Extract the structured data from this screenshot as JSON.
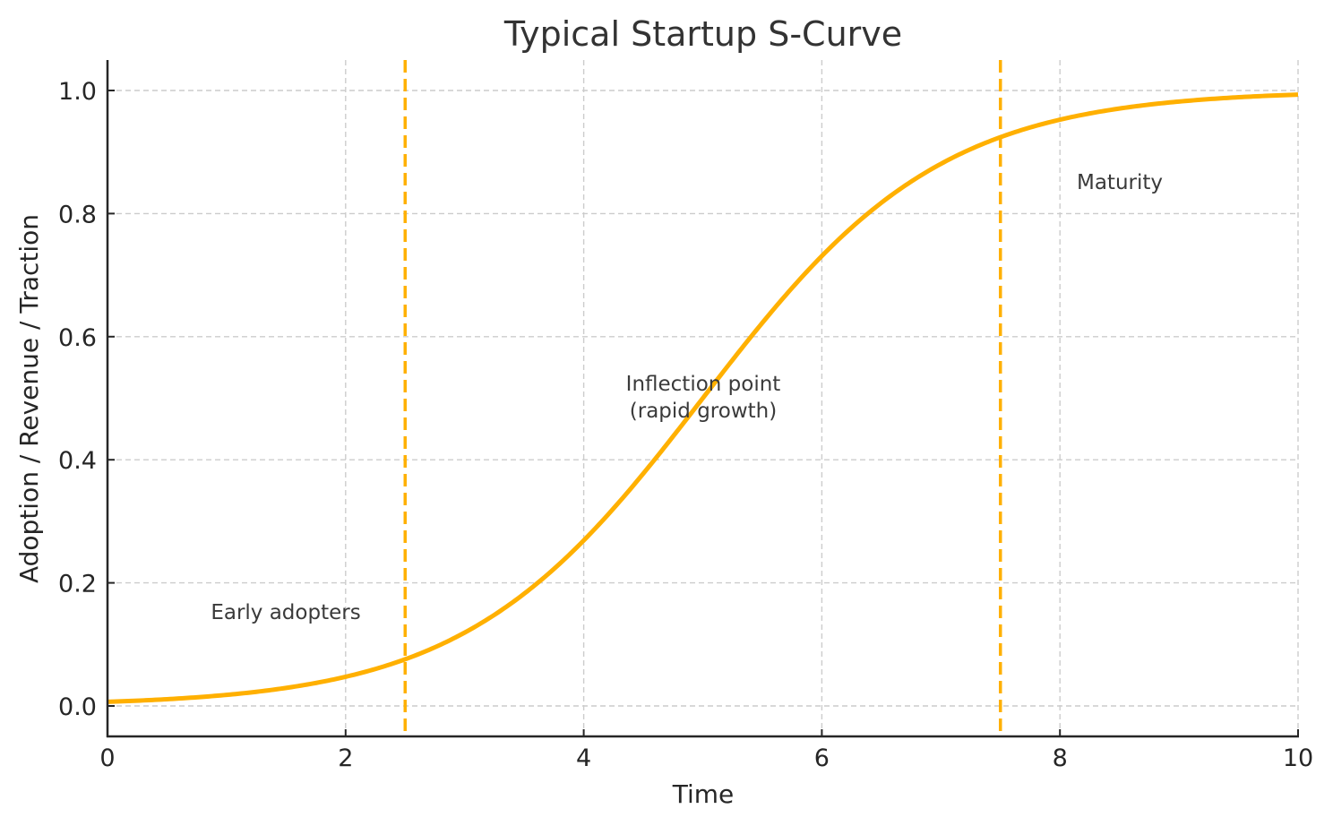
{
  "chart_data": {
    "type": "line",
    "title": "Typical Startup S-Curve",
    "xlabel": "Time",
    "ylabel": "Adoption / Revenue / Traction",
    "xlim": [
      0,
      10
    ],
    "ylim": [
      -0.05,
      1.05
    ],
    "xticks": [
      0,
      2,
      4,
      6,
      8,
      10
    ],
    "yticks": [
      0.0,
      0.2,
      0.4,
      0.6,
      0.8,
      1.0
    ],
    "xtick_labels": [
      "0",
      "2",
      "4",
      "6",
      "8",
      "10"
    ],
    "ytick_labels": [
      "0.0",
      "0.2",
      "0.4",
      "0.6",
      "0.8",
      "1.0"
    ],
    "grid": true,
    "legend": null,
    "series": [
      {
        "name": "S-curve",
        "color": "#FFB000",
        "function": "1/(1+exp(-(x-5)))",
        "x": [
          0,
          0.5,
          1,
          1.5,
          2,
          2.5,
          3,
          3.5,
          4,
          4.5,
          5,
          5.5,
          6,
          6.5,
          7,
          7.5,
          8,
          8.5,
          9,
          9.5,
          10
        ],
        "values": [
          0.007,
          0.011,
          0.018,
          0.029,
          0.047,
          0.076,
          0.119,
          0.182,
          0.269,
          0.378,
          0.5,
          0.622,
          0.731,
          0.818,
          0.881,
          0.924,
          0.953,
          0.971,
          0.982,
          0.989,
          0.993
        ]
      }
    ],
    "vlines": [
      {
        "x": 2.5,
        "style": "dashed",
        "color": "#FFB000"
      },
      {
        "x": 7.5,
        "style": "dashed",
        "color": "#FFB000"
      }
    ],
    "annotations": [
      {
        "text": "Early adopters",
        "x": 1.5,
        "y": 0.15
      },
      {
        "lines": [
          "Inflection point",
          "(rapid growth)"
        ],
        "x": 5,
        "y": 0.5
      },
      {
        "text": "Maturity",
        "x": 8.5,
        "y": 0.85
      }
    ]
  }
}
